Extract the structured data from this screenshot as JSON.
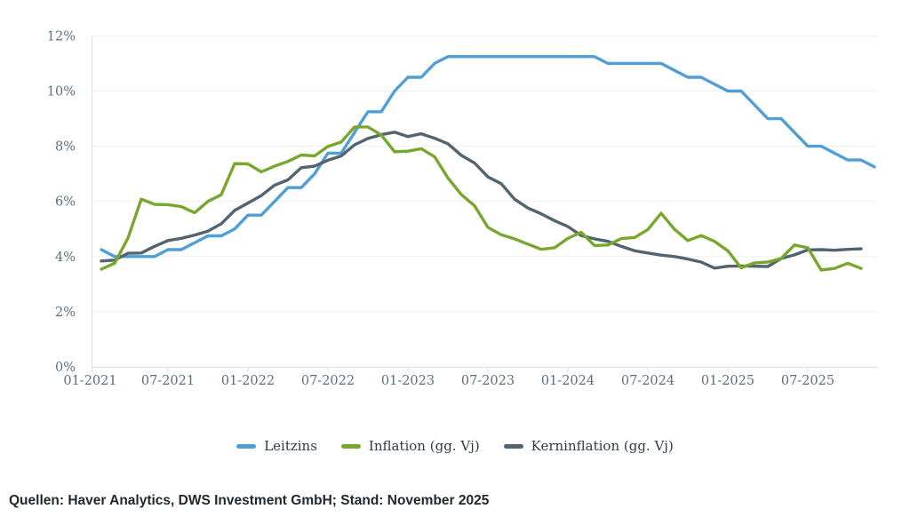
{
  "chart_data": {
    "type": "line",
    "title": "",
    "x_axis": {
      "tick_labels": [
        "01-2021",
        "07-2021",
        "01-2022",
        "07-2022",
        "01-2023",
        "07-2023",
        "01-2024",
        "07-2024",
        "01-2025",
        "07-2025"
      ],
      "frequency": "monthly",
      "first_point": "01-2021"
    },
    "y_axis": {
      "tick_labels": [
        "0%",
        "2%",
        "4%",
        "6%",
        "8%",
        "10%",
        "12%"
      ],
      "min": 0,
      "max": 12,
      "unit": "%"
    },
    "grid": true,
    "legend_position": "bottom",
    "series": [
      {
        "key": "leitzins",
        "name": "Leitzins",
        "color": "#4f9fd6",
        "first_month": "01-2021",
        "last_month": "11-2025",
        "values": [
          4.25,
          4.0,
          4.0,
          4.0,
          4.0,
          4.25,
          4.25,
          4.5,
          4.75,
          4.75,
          5.0,
          5.5,
          5.5,
          6.0,
          6.5,
          6.5,
          7.0,
          7.75,
          7.75,
          8.5,
          9.25,
          9.25,
          10.0,
          10.5,
          10.5,
          11.0,
          11.25,
          11.25,
          11.25,
          11.25,
          11.25,
          11.25,
          11.25,
          11.25,
          11.25,
          11.25,
          11.25,
          11.25,
          11.0,
          11.0,
          11.0,
          11.0,
          11.0,
          10.75,
          10.5,
          10.5,
          10.25,
          10.0,
          10.0,
          9.5,
          9.0,
          9.0,
          8.5,
          8.0,
          8.0,
          7.75,
          7.5,
          7.5,
          7.25
        ]
      },
      {
        "key": "inflation",
        "name": "Inflation (gg. Vj)",
        "color": "#79a72e",
        "first_month": "01-2021",
        "last_month": "10-2025",
        "values": [
          3.54,
          3.76,
          4.67,
          6.08,
          5.89,
          5.88,
          5.81,
          5.59,
          6.0,
          6.24,
          7.37,
          7.36,
          7.07,
          7.28,
          7.45,
          7.68,
          7.65,
          7.99,
          8.15,
          8.7,
          8.7,
          8.41,
          7.8,
          7.82,
          7.91,
          7.62,
          6.85,
          6.25,
          5.84,
          5.06,
          4.79,
          4.64,
          4.45,
          4.26,
          4.32,
          4.66,
          4.88,
          4.4,
          4.42,
          4.65,
          4.69,
          4.98,
          5.57,
          4.99,
          4.58,
          4.76,
          4.55,
          4.21,
          3.59,
          3.77,
          3.8,
          3.93,
          4.42,
          4.32,
          3.51,
          3.57,
          3.76,
          3.57
        ]
      },
      {
        "key": "kerninflation",
        "name": "Kerninflation (gg. Vj)",
        "color": "#52646f",
        "first_month": "01-2021",
        "last_month": "10-2025",
        "values": [
          3.84,
          3.87,
          4.12,
          4.13,
          4.37,
          4.58,
          4.66,
          4.78,
          4.92,
          5.19,
          5.67,
          5.94,
          6.21,
          6.59,
          6.78,
          7.22,
          7.28,
          7.49,
          7.65,
          8.05,
          8.28,
          8.42,
          8.51,
          8.35,
          8.45,
          8.29,
          8.09,
          7.67,
          7.39,
          6.89,
          6.64,
          6.08,
          5.76,
          5.55,
          5.3,
          5.09,
          4.76,
          4.64,
          4.55,
          4.37,
          4.21,
          4.13,
          4.05,
          4.0,
          3.91,
          3.8,
          3.58,
          3.65,
          3.66,
          3.65,
          3.64,
          3.93,
          4.06,
          4.24,
          4.25,
          4.23,
          4.26,
          4.28
        ]
      }
    ]
  },
  "colors": {
    "gridline": "#eef1f4",
    "axis_line": "#dde3e8",
    "tick_mark": "#d9e0e6",
    "axis_text": "#5b6f80"
  },
  "source": "Quellen: Haver Analytics, DWS Investment GmbH; Stand: November 2025"
}
